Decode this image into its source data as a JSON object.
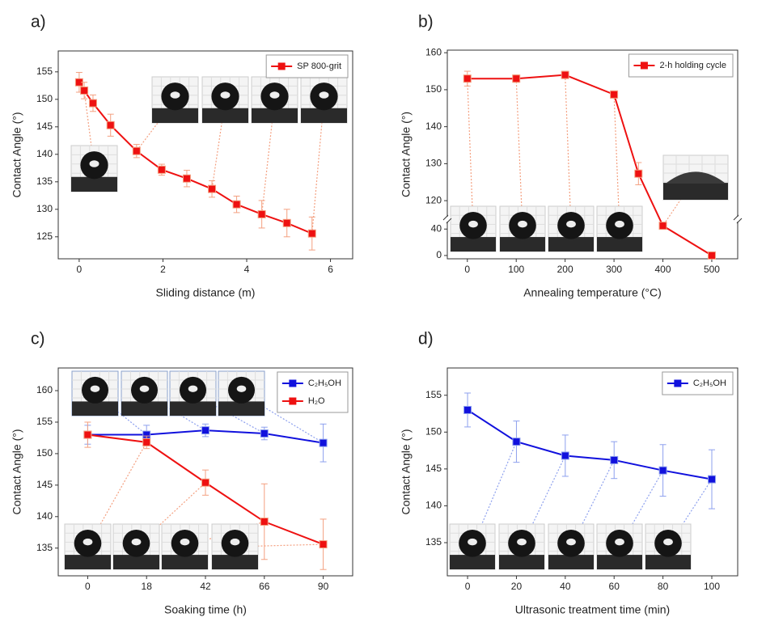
{
  "chart_data": [
    {
      "type": "line",
      "panel_label": "a)",
      "xlabel": "Sliding distance (m)",
      "ylabel": "Contact Angle (°)",
      "x": [
        0,
        0.12,
        0.33,
        0.75,
        1.37,
        1.97,
        2.57,
        3.17,
        3.76,
        4.36,
        4.96,
        5.56
      ],
      "series": [
        {
          "name": "SP 800-grit",
          "color": "#ee1111",
          "values": [
            153.1,
            151.6,
            149.3,
            145.3,
            140.6,
            137.2,
            135.6,
            133.7,
            130.9,
            129.1,
            127.5,
            125.6
          ],
          "errors": [
            1.8,
            1.5,
            1.5,
            2,
            1.2,
            1,
            1.5,
            1.5,
            1.5,
            2.5,
            2.5,
            3
          ]
        }
      ],
      "xlim": [
        -0.5,
        6.53
      ],
      "xticks": [
        0,
        2,
        4,
        6
      ],
      "ylim": [
        121,
        158.8
      ],
      "yticks": [
        125,
        130,
        135,
        140,
        145,
        150,
        155
      ],
      "legend": "upper right"
    },
    {
      "type": "line",
      "panel_label": "b)",
      "xlabel": "Annealing temperature (°C)",
      "ylabel": "Contact Angle (°)",
      "x": [
        0,
        100,
        200,
        300,
        350,
        400,
        500
      ],
      "series": [
        {
          "name": "2-h holding cycle",
          "color": "#ee1111",
          "values": [
            153,
            153,
            154,
            148.7,
            127.3,
            45,
            0
          ],
          "errors": [
            2,
            1,
            1,
            1,
            3,
            2,
            1
          ]
        }
      ],
      "xlim": [
        -41,
        553
      ],
      "xticks": [
        0,
        100,
        200,
        300,
        400,
        500
      ],
      "ylim": [
        -5,
        160.7
      ],
      "ybreak": [
        55,
        115
      ],
      "yticks": [
        0,
        40,
        120,
        130,
        140,
        150,
        160
      ],
      "legend": "upper right"
    },
    {
      "type": "line",
      "panel_label": "c)",
      "xlabel": "Soaking time (h)",
      "ylabel": "Contact Angle (°)",
      "categories": [
        "0",
        "18",
        "42",
        "66",
        "90"
      ],
      "series": [
        {
          "name": "C₂H₅OH",
          "color": "#1111dd",
          "values": [
            153,
            153,
            153.7,
            153.2,
            151.7
          ],
          "errors": [
            1.5,
            1.5,
            1,
            1,
            3
          ]
        },
        {
          "name": "H₂O",
          "color": "#ee1111",
          "values": [
            153,
            151.8,
            145.4,
            139.2,
            135.6
          ],
          "errors": [
            2,
            1,
            2,
            6,
            4
          ]
        }
      ],
      "ylim": [
        130.6,
        163.6
      ],
      "yticks": [
        135,
        140,
        145,
        150,
        155,
        160
      ],
      "legend": "upper right"
    },
    {
      "type": "line",
      "panel_label": "d)",
      "xlabel": "Ultrasonic treatment time (min)",
      "ylabel": "Contact Angle (°)",
      "x": [
        0,
        20,
        40,
        60,
        80,
        100
      ],
      "series": [
        {
          "name": "C₂H₅OH",
          "color": "#1111dd",
          "values": [
            153,
            148.7,
            146.8,
            146.2,
            144.8,
            143.6
          ],
          "errors": [
            2.3,
            2.8,
            2.8,
            2.5,
            3.5,
            4
          ]
        }
      ],
      "xlim": [
        -8.3,
        110.6
      ],
      "xticks": [
        0,
        20,
        40,
        60,
        80,
        100
      ],
      "ylim": [
        130.5,
        158.7
      ],
      "yticks": [
        135,
        140,
        145,
        150,
        155
      ],
      "legend": "upper right"
    }
  ]
}
